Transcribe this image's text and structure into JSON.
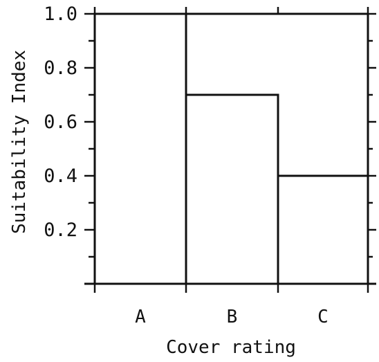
{
  "chart_data": {
    "type": "bar",
    "title": "",
    "xlabel": "Cover rating",
    "ylabel": "Suitability Index",
    "categories": [
      "A",
      "B",
      "C"
    ],
    "values": [
      1.0,
      0.7,
      0.4
    ],
    "ylim": [
      0,
      1.0
    ],
    "yticks": [
      0.2,
      0.4,
      0.6,
      0.8,
      1.0
    ],
    "ytick_labels": [
      "0.2",
      "0.4",
      "0.6",
      "0.8",
      "1.0"
    ],
    "grid": false,
    "legend": "none",
    "line_color": "#111111"
  }
}
